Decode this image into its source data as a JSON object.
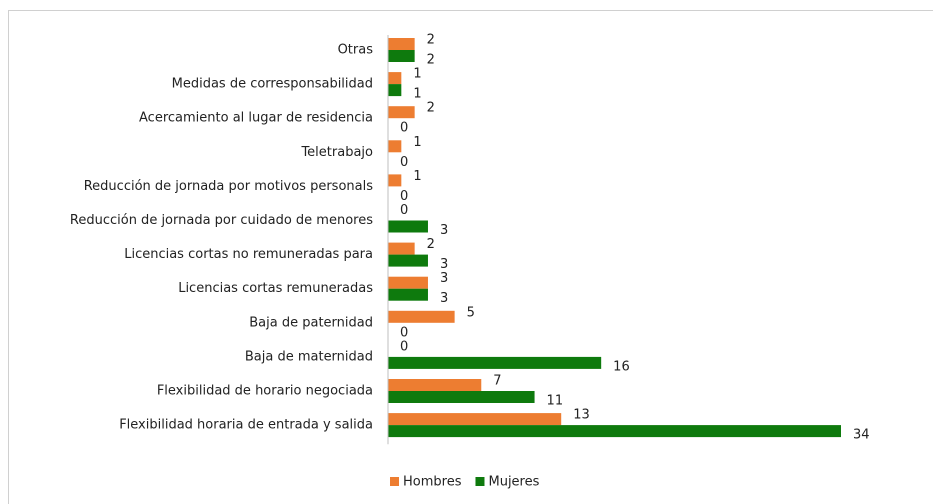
{
  "chart_data": {
    "type": "hbar",
    "categories": [
      "Otras",
      "Medidas de corresponsabilidad",
      "Acercamiento al lugar de residencia",
      "Teletrabajo",
      "Reducción de jornada por motivos personals",
      "Reducción de jornada por cuidado de menores",
      "Licencias cortas no remuneradas para",
      "Licencias cortas remuneradas",
      "Baja de paternidad",
      "Baja de maternidad",
      "Flexibilidad de horario negociada",
      "Flexibilidad horaria de entrada y salida"
    ],
    "series": [
      {
        "name": "Hombres",
        "color": "#ed7d31",
        "values": [
          2,
          1,
          2,
          1,
          1,
          0,
          2,
          3,
          5,
          0,
          7,
          13
        ]
      },
      {
        "name": "Mujeres",
        "color": "#0e7a0d",
        "values": [
          2,
          1,
          0,
          0,
          0,
          3,
          3,
          3,
          0,
          16,
          11,
          34
        ]
      }
    ],
    "xlim": [
      0,
      34
    ],
    "legend": "bottom"
  }
}
